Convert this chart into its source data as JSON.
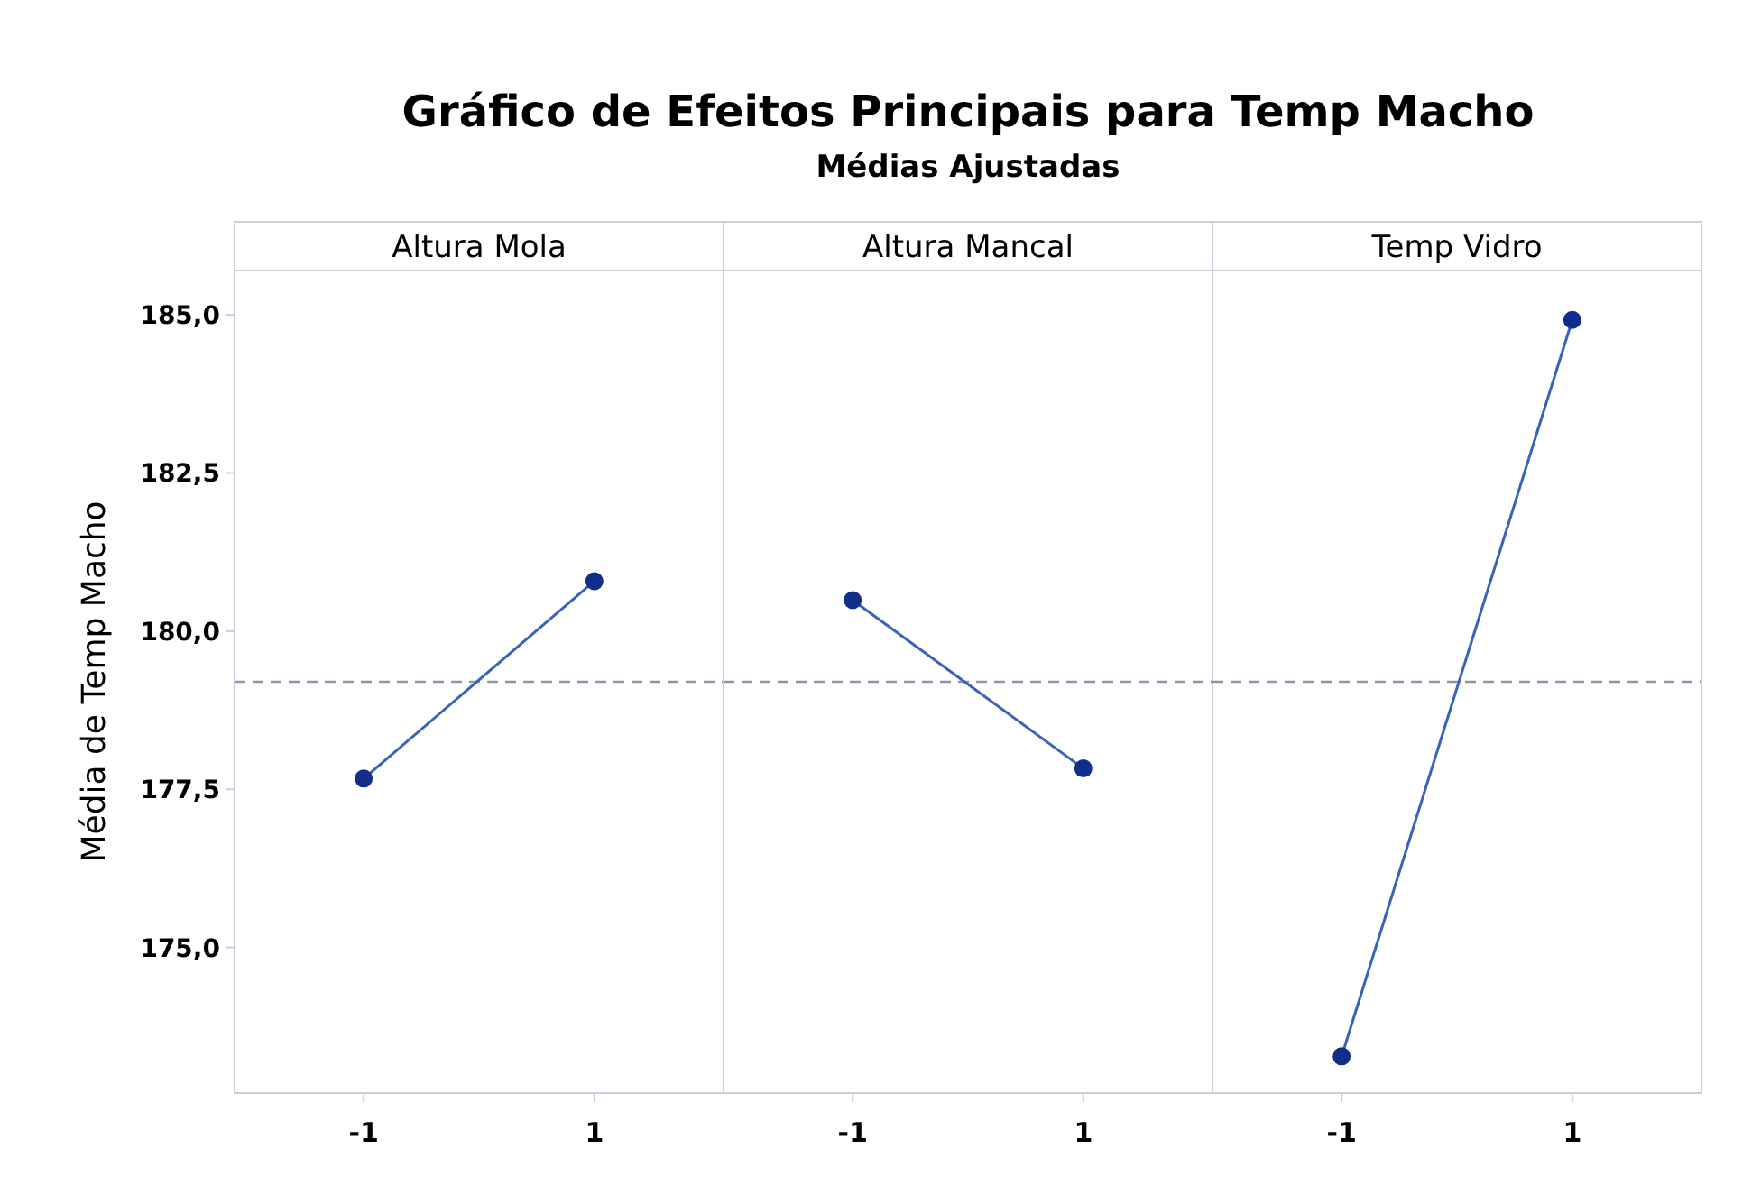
{
  "chart_data": [
    {
      "type": "line",
      "title": "Altura Mola",
      "annotations": [
        "Gráfico de Efeitos Principais para Temp Macho",
        "Médias Ajustadas"
      ],
      "ylabel": "Média de Temp Macho",
      "categories": [
        "-1",
        "1"
      ],
      "series": [
        {
          "color": "#3a62b8",
          "values": [
            177.67,
            180.79
          ]
        }
      ],
      "ylim": [
        172.7,
        185.7
      ],
      "yticks": [
        {
          "value": 175,
          "label": "175,0"
        },
        {
          "value": 177.5,
          "label": "177,5"
        },
        {
          "value": 180,
          "label": "180,0"
        },
        {
          "value": 182.5,
          "label": "182,5"
        },
        {
          "value": 185,
          "label": "185,0"
        }
      ],
      "ref_lines": [
        {
          "axis": "y",
          "value": 179.2,
          "color": "#8a96b0",
          "line_style": "dashed"
        }
      ],
      "marker": "circle",
      "grid": false
    },
    {
      "type": "line",
      "title": "Altura Mancal",
      "categories": [
        "-1",
        "1"
      ],
      "series": [
        {
          "color": "#3a62b8",
          "values": [
            180.49,
            177.83
          ]
        }
      ],
      "ylim": [
        172.7,
        185.7
      ],
      "tick_labels": "x",
      "ref_lines": [
        {
          "axis": "y",
          "value": 179.2,
          "color": "#8a96b0",
          "line_style": "dashed"
        }
      ],
      "marker": "circle",
      "grid": false
    },
    {
      "type": "line",
      "title": "Temp Vidro",
      "categories": [
        "-1",
        "1"
      ],
      "series": [
        {
          "color": "#3a62b8",
          "values": [
            173.28,
            184.92
          ]
        }
      ],
      "ylim": [
        172.7,
        185.7
      ],
      "tick_labels": "x",
      "ref_lines": [
        {
          "axis": "y",
          "value": 179.2,
          "color": "#8a96b0",
          "line_style": "dashed"
        }
      ],
      "marker": "circle",
      "grid": false
    }
  ]
}
